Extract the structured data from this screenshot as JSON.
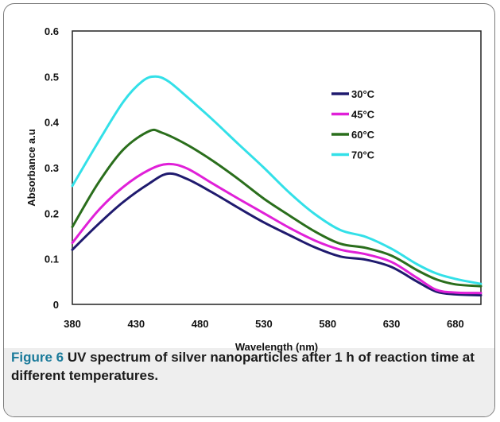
{
  "figure": {
    "caption_label": "Figure 6",
    "caption_text": " UV spectrum of silver nanoparticles after 1 h of reaction time at different temperatures."
  },
  "chart_data": {
    "type": "line",
    "xlabel": "Wavelength (nm)",
    "ylabel": "Absorbance a.u",
    "xlim": [
      380,
      700
    ],
    "ylim": [
      0,
      0.6
    ],
    "x_ticks": [
      380,
      430,
      480,
      530,
      580,
      630,
      680
    ],
    "y_ticks": [
      0,
      0.1,
      0.2,
      0.3,
      0.4,
      0.5,
      0.6
    ],
    "y_tick_labels": [
      "0",
      "0.1",
      "0.2",
      "0.3",
      "0.4",
      "0.5",
      "0.6"
    ],
    "legend_position": "top-right",
    "grid": false,
    "series": [
      {
        "name": "30°C",
        "color": "#1f1a6e",
        "x": [
          380,
          400,
          420,
          440,
          455,
          470,
          490,
          510,
          530,
          550,
          570,
          590,
          610,
          630,
          650,
          665,
          680,
          700
        ],
        "values": [
          0.12,
          0.175,
          0.225,
          0.265,
          0.287,
          0.275,
          0.245,
          0.212,
          0.18,
          0.152,
          0.125,
          0.105,
          0.098,
          0.082,
          0.05,
          0.028,
          0.022,
          0.02
        ]
      },
      {
        "name": "45°C",
        "color": "#e020d8",
        "x": [
          380,
          400,
          420,
          440,
          455,
          470,
          490,
          510,
          530,
          550,
          570,
          590,
          610,
          630,
          650,
          665,
          680,
          700
        ],
        "values": [
          0.135,
          0.205,
          0.258,
          0.295,
          0.308,
          0.298,
          0.265,
          0.232,
          0.2,
          0.168,
          0.14,
          0.12,
          0.11,
          0.093,
          0.058,
          0.032,
          0.026,
          0.025
        ]
      },
      {
        "name": "60°C",
        "color": "#2a6e1c",
        "x": [
          380,
          400,
          420,
          440,
          450,
          470,
          490,
          510,
          530,
          550,
          570,
          590,
          610,
          630,
          650,
          665,
          680,
          700
        ],
        "values": [
          0.17,
          0.265,
          0.34,
          0.38,
          0.377,
          0.35,
          0.315,
          0.275,
          0.232,
          0.195,
          0.16,
          0.133,
          0.124,
          0.107,
          0.075,
          0.055,
          0.044,
          0.04
        ]
      },
      {
        "name": "70°C",
        "color": "#33e0e8",
        "x": [
          380,
          400,
          420,
          435,
          445,
          455,
          470,
          490,
          510,
          530,
          550,
          570,
          590,
          610,
          630,
          650,
          665,
          680,
          700
        ],
        "values": [
          0.26,
          0.355,
          0.445,
          0.49,
          0.5,
          0.49,
          0.455,
          0.405,
          0.352,
          0.3,
          0.245,
          0.198,
          0.163,
          0.148,
          0.122,
          0.088,
          0.068,
          0.056,
          0.045
        ]
      }
    ]
  }
}
